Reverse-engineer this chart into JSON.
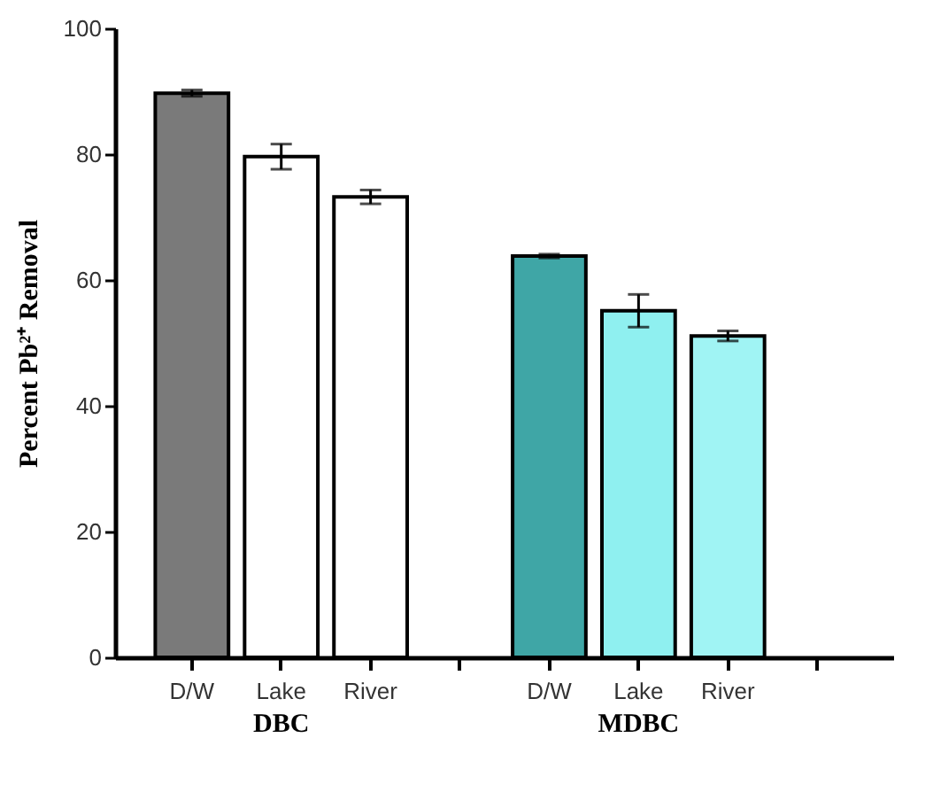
{
  "chart_data": {
    "type": "bar",
    "ylabel": "Percent Pb²⁺ Removal",
    "categories": [
      "D/W",
      "Lake",
      "River",
      null,
      "D/W",
      "Lake",
      "River",
      null
    ],
    "values": [
      89.7,
      79.6,
      73.2,
      null,
      63.8,
      55.1,
      51.1,
      null
    ],
    "errors": [
      0.5,
      2.0,
      1.1,
      null,
      0.3,
      2.6,
      0.8,
      null
    ],
    "colors": [
      "#7a7a7a",
      "#ffffff",
      "#ffffff",
      null,
      "#3fa6a6",
      "#8ff0f0",
      "#a0f4f4",
      null
    ],
    "annotations": [
      "DBC",
      "MDBC"
    ],
    "ylim": [
      0,
      100
    ],
    "yticks": [
      0,
      20,
      40,
      60,
      80,
      100
    ],
    "grid": false
  }
}
